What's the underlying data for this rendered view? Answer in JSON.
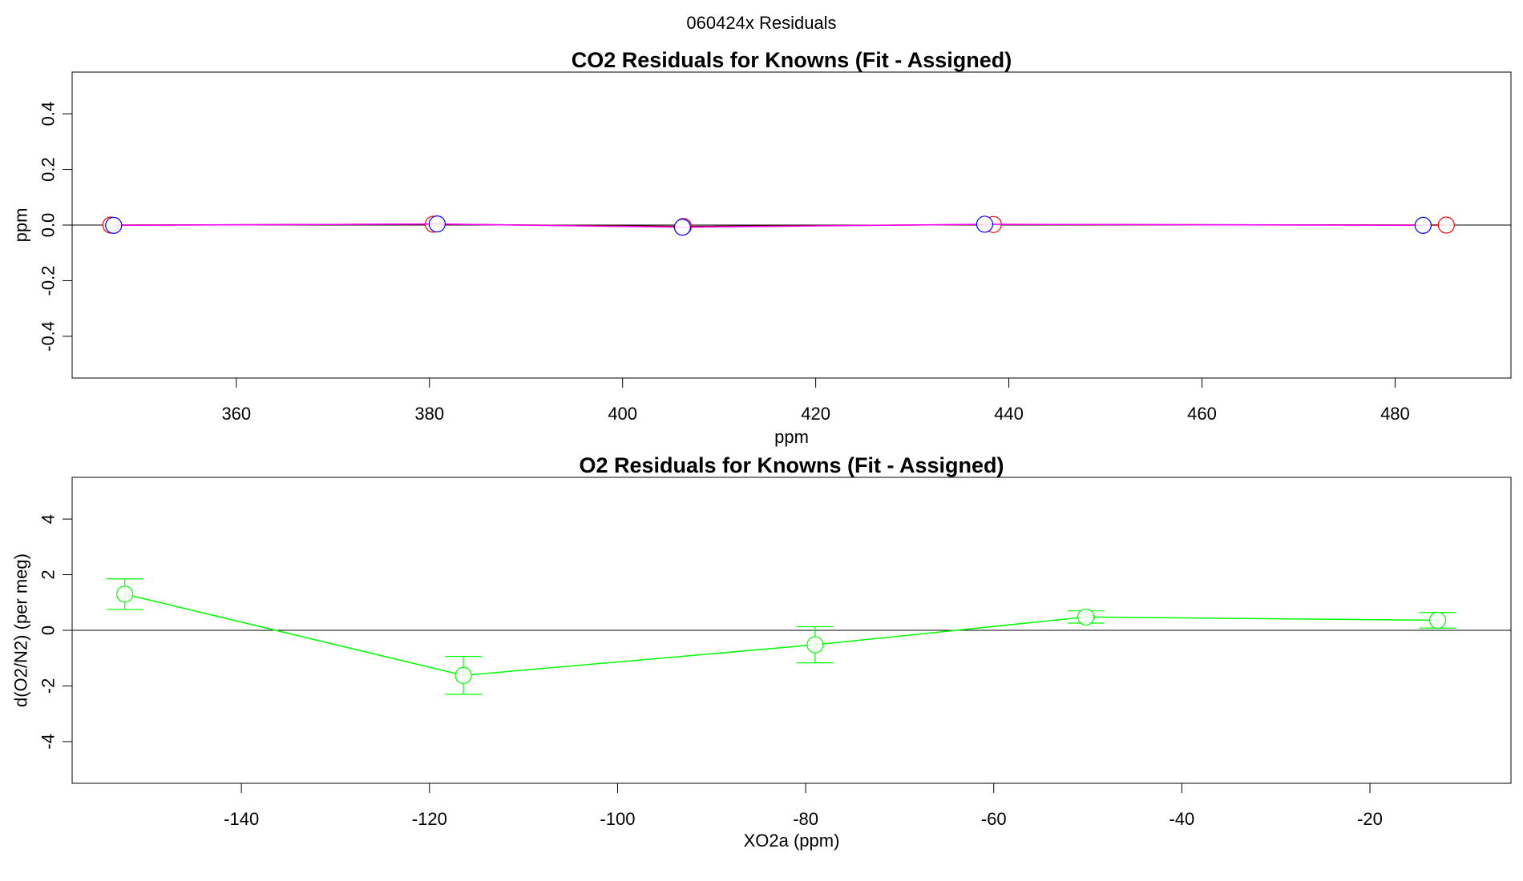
{
  "figure": {
    "suptitle": "060424x  Residuals"
  },
  "chart_data": [
    {
      "type": "line",
      "title": "CO2 Residuals for Knowns (Fit - Assigned)",
      "xlabel": "ppm",
      "ylabel": "ppm",
      "xlim": [
        343,
        492
      ],
      "ylim": [
        -0.55,
        0.55
      ],
      "xticks": [
        360,
        380,
        400,
        420,
        440,
        460,
        480
      ],
      "yticks": [
        -0.4,
        -0.2,
        0.0,
        0.2,
        0.4
      ],
      "ytick_labels": [
        "-0.4",
        "-0.2",
        "0.0",
        "0.2",
        "0.4"
      ],
      "reference_line": 0,
      "series": [
        {
          "color": "#ff0000",
          "line_color": "#800000",
          "x": [
            347.0,
            380.4,
            406.3,
            438.4,
            485.3
          ],
          "y": [
            0.0,
            0.003,
            -0.005,
            0.002,
            0.0
          ]
        },
        {
          "color": "#0000ff",
          "line_color": "#ff00ff",
          "x": [
            347.3,
            380.8,
            406.2,
            437.5,
            482.9
          ],
          "y": [
            -0.001,
            0.004,
            -0.008,
            0.003,
            -0.001
          ]
        }
      ]
    },
    {
      "type": "line",
      "title": "O2 Residuals for Knowns (Fit - Assigned)",
      "xlabel": "XO2a (ppm)",
      "ylabel": "d(O2/N2) (per meg)",
      "xlim": [
        -158,
        -5
      ],
      "ylim": [
        -5.5,
        5.5
      ],
      "xticks": [
        -140,
        -120,
        -100,
        -80,
        -60,
        -40,
        -20
      ],
      "yticks": [
        -4,
        -2,
        0,
        2,
        4
      ],
      "ytick_labels": [
        "-4",
        "-2",
        "0",
        "2",
        "4"
      ],
      "reference_line": 0,
      "series": [
        {
          "color": "#00ff00",
          "x": [
            -152.4,
            -116.4,
            -79.0,
            -50.2,
            -12.8
          ],
          "y": [
            1.3,
            -1.62,
            -0.52,
            0.48,
            0.36
          ],
          "err": [
            0.55,
            0.68,
            0.65,
            0.22,
            0.28
          ]
        }
      ]
    }
  ]
}
